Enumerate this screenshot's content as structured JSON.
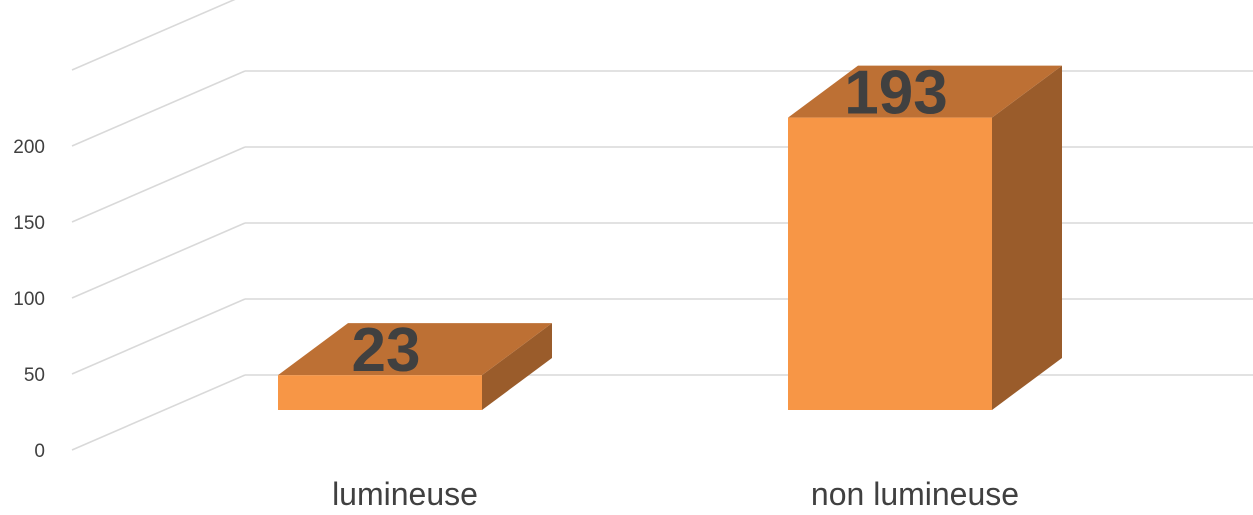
{
  "chart_data": {
    "type": "bar",
    "style": "3d-column",
    "categories": [
      "lumineuse",
      "non lumineuse"
    ],
    "values": [
      23,
      193
    ],
    "data_labels": [
      "23",
      "193"
    ],
    "yticks": [
      "0",
      "50",
      "100",
      "150",
      "200"
    ],
    "ylim": [
      0,
      250
    ],
    "grid": true,
    "legend": "none",
    "colors": {
      "front": "#F79646",
      "top": "#BD7034",
      "side": "#9A5C2B",
      "grid": "#D9D9D9",
      "text": "#404040"
    }
  }
}
